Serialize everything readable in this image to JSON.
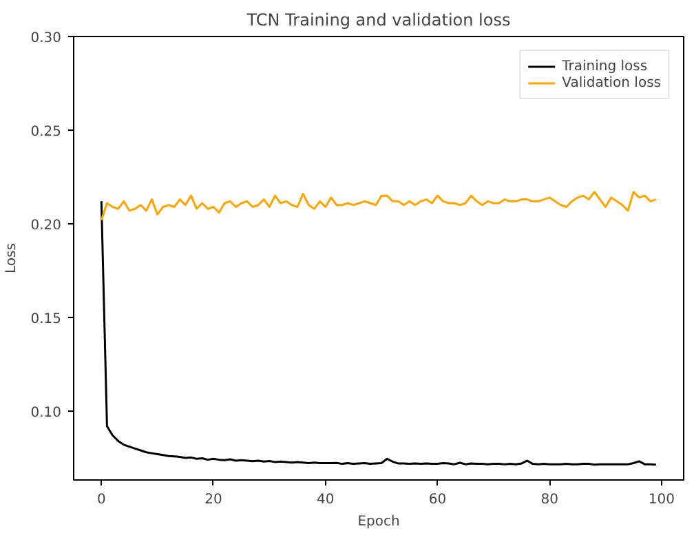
{
  "chart_data": {
    "type": "line",
    "title": "TCN Training and validation loss",
    "xlabel": "Epoch",
    "ylabel": "Loss",
    "x": [
      0,
      1,
      2,
      3,
      4,
      5,
      6,
      7,
      8,
      9,
      10,
      11,
      12,
      13,
      14,
      15,
      16,
      17,
      18,
      19,
      20,
      21,
      22,
      23,
      24,
      25,
      26,
      27,
      28,
      29,
      30,
      31,
      32,
      33,
      34,
      35,
      36,
      37,
      38,
      39,
      40,
      41,
      42,
      43,
      44,
      45,
      46,
      47,
      48,
      49,
      50,
      51,
      52,
      53,
      54,
      55,
      56,
      57,
      58,
      59,
      60,
      61,
      62,
      63,
      64,
      65,
      66,
      67,
      68,
      69,
      70,
      71,
      72,
      73,
      74,
      75,
      76,
      77,
      78,
      79,
      80,
      81,
      82,
      83,
      84,
      85,
      86,
      87,
      88,
      89,
      90,
      91,
      92,
      93,
      94,
      95,
      96,
      97,
      98,
      99
    ],
    "series": [
      {
        "name": "Training loss",
        "color": "#000000",
        "values": [
          0.212,
          0.092,
          0.087,
          0.084,
          0.082,
          0.081,
          0.08,
          0.079,
          0.078,
          0.0775,
          0.077,
          0.0765,
          0.076,
          0.0758,
          0.0755,
          0.075,
          0.0752,
          0.0745,
          0.0748,
          0.074,
          0.0745,
          0.074,
          0.0738,
          0.0742,
          0.0735,
          0.0738,
          0.0735,
          0.0732,
          0.0735,
          0.073,
          0.0733,
          0.0728,
          0.073,
          0.0728,
          0.0725,
          0.0728,
          0.0725,
          0.0722,
          0.0725,
          0.0722,
          0.0722,
          0.0722,
          0.0723,
          0.0718,
          0.0722,
          0.0718,
          0.072,
          0.0722,
          0.0718,
          0.072,
          0.0722,
          0.0745,
          0.073,
          0.072,
          0.072,
          0.0718,
          0.072,
          0.0718,
          0.072,
          0.0718,
          0.0718,
          0.0722,
          0.072,
          0.0716,
          0.0724,
          0.0716,
          0.072,
          0.0718,
          0.0718,
          0.0716,
          0.0718,
          0.0718,
          0.0716,
          0.0718,
          0.0716,
          0.072,
          0.0735,
          0.0718,
          0.0716,
          0.0718,
          0.0716,
          0.0716,
          0.0716,
          0.0718,
          0.0716,
          0.0716,
          0.0718,
          0.0718,
          0.0714,
          0.0716,
          0.0716,
          0.0716,
          0.0716,
          0.0716,
          0.0716,
          0.0722,
          0.0732,
          0.0716,
          0.0716,
          0.0714
        ]
      },
      {
        "name": "Validation loss",
        "color": "#ffa500",
        "values": [
          0.202,
          0.211,
          0.209,
          0.208,
          0.212,
          0.207,
          0.208,
          0.21,
          0.207,
          0.213,
          0.205,
          0.209,
          0.21,
          0.209,
          0.213,
          0.21,
          0.215,
          0.208,
          0.211,
          0.208,
          0.209,
          0.206,
          0.211,
          0.212,
          0.209,
          0.211,
          0.212,
          0.209,
          0.21,
          0.213,
          0.209,
          0.215,
          0.211,
          0.212,
          0.21,
          0.209,
          0.216,
          0.21,
          0.208,
          0.212,
          0.209,
          0.214,
          0.21,
          0.21,
          0.211,
          0.21,
          0.211,
          0.212,
          0.211,
          0.21,
          0.215,
          0.215,
          0.212,
          0.212,
          0.21,
          0.212,
          0.21,
          0.212,
          0.213,
          0.211,
          0.215,
          0.212,
          0.211,
          0.211,
          0.21,
          0.211,
          0.215,
          0.212,
          0.21,
          0.212,
          0.211,
          0.211,
          0.213,
          0.212,
          0.212,
          0.213,
          0.213,
          0.212,
          0.212,
          0.213,
          0.214,
          0.212,
          0.21,
          0.209,
          0.212,
          0.214,
          0.215,
          0.213,
          0.217,
          0.213,
          0.209,
          0.214,
          0.212,
          0.21,
          0.207,
          0.217,
          0.214,
          0.215,
          0.212,
          0.213
        ]
      }
    ],
    "xlim": [
      -4.95,
      103.95
    ],
    "ylim": [
      0.0632,
      0.3
    ],
    "xticks": [
      0,
      20,
      40,
      60,
      80,
      100
    ],
    "yticks": [
      {
        "value": 0.1,
        "label": "0.10"
      },
      {
        "value": 0.15,
        "label": "0.15"
      },
      {
        "value": 0.2,
        "label": "0.20"
      },
      {
        "value": 0.25,
        "label": "0.25"
      },
      {
        "value": 0.3,
        "label": "0.30"
      }
    ],
    "grid": false,
    "legend": "top right"
  }
}
